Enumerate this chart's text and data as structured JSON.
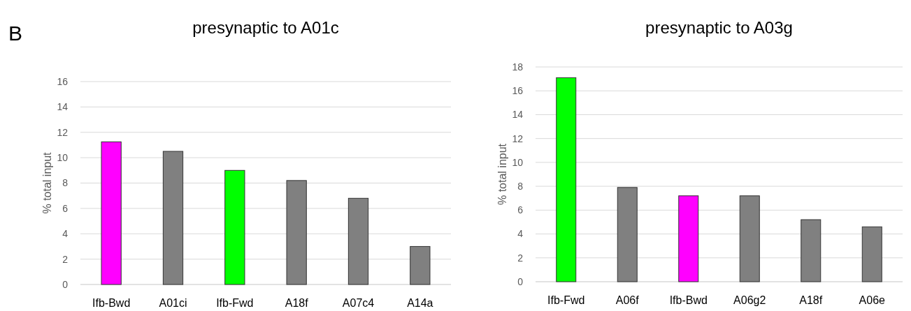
{
  "chart_data": [
    {
      "type": "bar",
      "title": "presynaptic to A01c",
      "ylabel": "% total input",
      "annotations": [
        "B"
      ],
      "categories": [
        "Ifb-Bwd",
        "A01ci",
        "Ifb-Fwd",
        "A18f",
        "A07c4",
        "A14a"
      ],
      "values": [
        11.25,
        10.5,
        9.0,
        8.2,
        6.8,
        3.0
      ],
      "colors": [
        "#ff00ff",
        "#808080",
        "#00ff00",
        "#808080",
        "#808080",
        "#808080"
      ],
      "ylim": [
        0,
        16
      ],
      "yticks": [
        0,
        2,
        4,
        6,
        8,
        10,
        12,
        14,
        16
      ],
      "grid": "y"
    },
    {
      "type": "bar",
      "title": "presynaptic to A03g",
      "ylabel": "% total input",
      "categories": [
        "Ifb-Fwd",
        "A06f",
        "Ifb-Bwd",
        "A06g2",
        "A18f",
        "A06e"
      ],
      "values": [
        17.1,
        7.9,
        7.2,
        7.2,
        5.2,
        4.6
      ],
      "colors": [
        "#00ff00",
        "#808080",
        "#ff00ff",
        "#808080",
        "#808080",
        "#808080"
      ],
      "ylim": [
        0,
        18
      ],
      "yticks": [
        0,
        2,
        4,
        6,
        8,
        10,
        12,
        14,
        16,
        18
      ],
      "grid": "y"
    }
  ]
}
